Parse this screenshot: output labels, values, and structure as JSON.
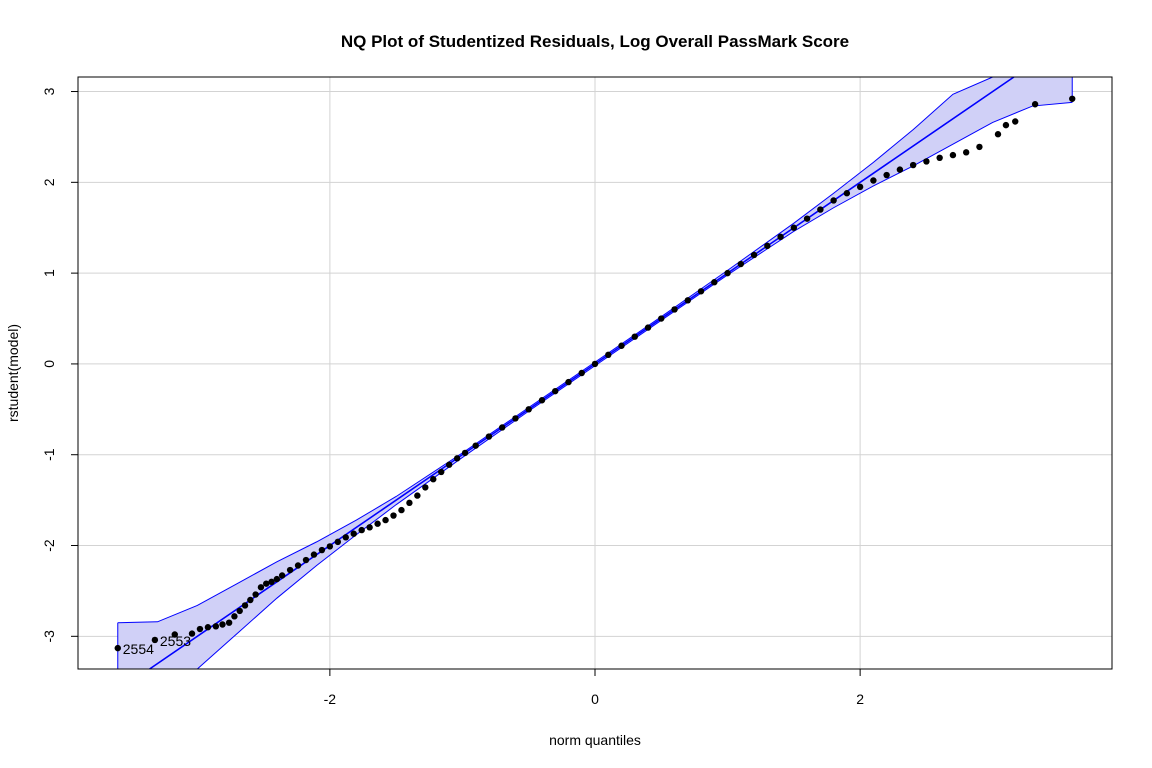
{
  "chart_data": {
    "type": "scatter",
    "title": "NQ Plot of Studentized Residuals, Log Overall PassMark Score",
    "xlabel": "norm quantiles",
    "ylabel": "rstudent(model)",
    "xlim": [
      -3.9,
      3.9
    ],
    "ylim": [
      -3.36,
      3.16
    ],
    "x_ticks": [
      -2,
      0,
      2
    ],
    "y_ticks": [
      -3,
      -2,
      -1,
      0,
      1,
      2,
      3
    ],
    "grid": true,
    "reference_line": {
      "intercept": 0.0,
      "slope": 1.0,
      "color": "#0000ff"
    },
    "envelope": {
      "fill": "#d0d0f7",
      "stroke": "#0000ff",
      "x": [
        -3.6,
        -3.3,
        -3.0,
        -2.7,
        -2.4,
        -2.1,
        -1.8,
        -1.5,
        -1.0,
        -0.5,
        0.0,
        0.5,
        1.0,
        1.5,
        1.8,
        2.1,
        2.4,
        2.7,
        3.0,
        3.3,
        3.6
      ],
      "upper": [
        -2.85,
        -2.84,
        -2.66,
        -2.42,
        -2.18,
        -1.96,
        -1.72,
        -1.46,
        -0.98,
        -0.48,
        0.02,
        0.52,
        1.03,
        1.55,
        1.88,
        2.22,
        2.58,
        2.97,
        3.4,
        3.9,
        4.3
      ],
      "lower": [
        -4.3,
        -3.9,
        -3.4,
        -2.97,
        -2.58,
        -2.22,
        -1.88,
        -1.55,
        -1.03,
        -0.52,
        -0.02,
        0.48,
        0.98,
        1.46,
        1.72,
        1.96,
        2.18,
        2.42,
        2.66,
        2.84,
        2.88
      ]
    },
    "points": {
      "color": "#000000",
      "x": [
        -3.6,
        -3.32,
        -3.17,
        -3.04,
        -2.98,
        -2.92,
        -2.86,
        -2.81,
        -2.76,
        -2.72,
        -2.68,
        -2.64,
        -2.6,
        -2.56,
        -2.52,
        -2.48,
        -2.44,
        -2.4,
        -2.36,
        -2.3,
        -2.24,
        -2.18,
        -2.12,
        -2.06,
        -2.0,
        -1.94,
        -1.88,
        -1.82,
        -1.76,
        -1.7,
        -1.64,
        -1.58,
        -1.52,
        -1.46,
        -1.4,
        -1.34,
        -1.28,
        -1.22,
        -1.16,
        -1.1,
        -1.04,
        -0.98,
        -0.9,
        -0.8,
        -0.7,
        -0.6,
        -0.5,
        -0.4,
        -0.3,
        -0.2,
        -0.1,
        0.0,
        0.1,
        0.2,
        0.3,
        0.4,
        0.5,
        0.6,
        0.7,
        0.8,
        0.9,
        1.0,
        1.1,
        1.2,
        1.3,
        1.4,
        1.5,
        1.6,
        1.7,
        1.8,
        1.9,
        2.0,
        2.1,
        2.2,
        2.3,
        2.4,
        2.5,
        2.6,
        2.7,
        2.8,
        2.9,
        3.04,
        3.1,
        3.17,
        3.32,
        3.6
      ],
      "y": [
        -3.13,
        -3.04,
        -2.98,
        -2.97,
        -2.92,
        -2.9,
        -2.89,
        -2.87,
        -2.85,
        -2.78,
        -2.72,
        -2.66,
        -2.6,
        -2.54,
        -2.46,
        -2.42,
        -2.4,
        -2.37,
        -2.33,
        -2.27,
        -2.22,
        -2.16,
        -2.1,
        -2.05,
        -2.01,
        -1.96,
        -1.91,
        -1.87,
        -1.83,
        -1.8,
        -1.76,
        -1.72,
        -1.67,
        -1.61,
        -1.53,
        -1.45,
        -1.36,
        -1.27,
        -1.19,
        -1.11,
        -1.04,
        -0.98,
        -0.9,
        -0.8,
        -0.7,
        -0.6,
        -0.5,
        -0.4,
        -0.3,
        -0.2,
        -0.1,
        0.0,
        0.1,
        0.2,
        0.3,
        0.4,
        0.5,
        0.6,
        0.7,
        0.8,
        0.9,
        1.0,
        1.1,
        1.2,
        1.3,
        1.4,
        1.5,
        1.6,
        1.7,
        1.8,
        1.88,
        1.95,
        2.02,
        2.08,
        2.14,
        2.19,
        2.23,
        2.27,
        2.3,
        2.33,
        2.39,
        2.53,
        2.63,
        2.67,
        2.86,
        2.92
      ]
    },
    "point_labels": [
      {
        "text": "2554",
        "x": -3.6,
        "y": -3.13
      },
      {
        "text": "2553",
        "x": -3.32,
        "y": -3.04
      }
    ]
  }
}
